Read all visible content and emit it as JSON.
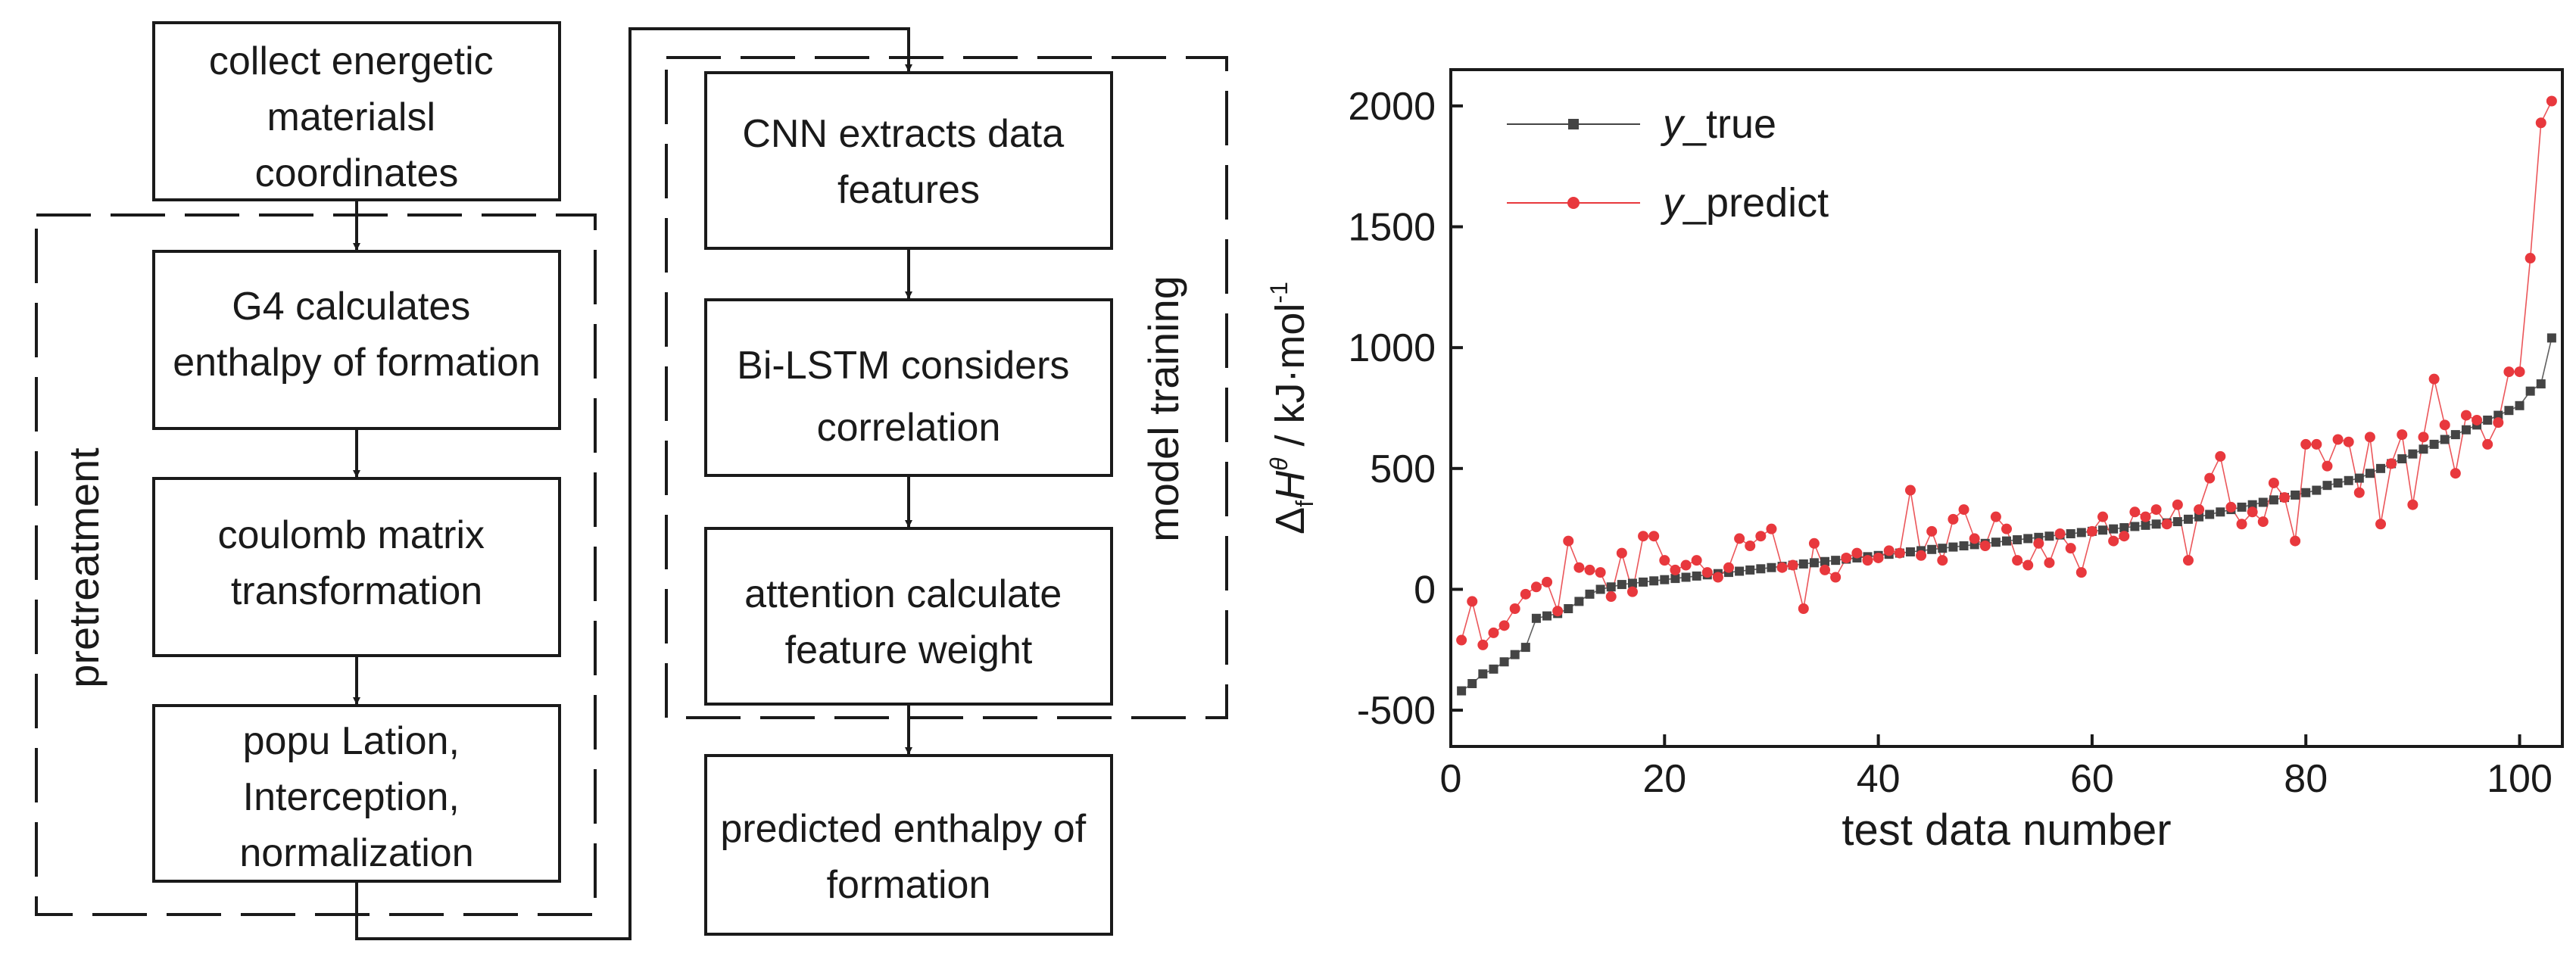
{
  "flowchart": {
    "groups": {
      "pretreatment": "pretreatment",
      "model_training": "model training"
    },
    "nodes": {
      "collect": [
        "collect energetic",
        "materialsl",
        "coordinates"
      ],
      "g4": [
        "G4 calculates",
        "enthalpy of formation"
      ],
      "coulomb": [
        "coulomb matrix",
        "transformation"
      ],
      "popu": [
        "popu Lation,",
        "Interception,",
        "normalization"
      ],
      "cnn": [
        "CNN extracts data",
        "features"
      ],
      "bilstm": [
        "Bi-LSTM considers",
        "correlation"
      ],
      "attention": [
        "attention calculate",
        "feature weight"
      ],
      "predicted": [
        "predicted enthalpy of",
        "formation"
      ]
    }
  },
  "chart_data": {
    "type": "line",
    "xlabel": "test data number",
    "ylabel": "ΔfHθ / kJ·mol-1",
    "ylabel_parts": {
      "delta": "Δ",
      "sub": "f",
      "h": "H",
      "sup": "θ",
      "unit": " / kJ·mol",
      "unit_sup": "-1"
    },
    "xlim": [
      0,
      104
    ],
    "ylim": [
      -650,
      2150
    ],
    "xticks": [
      0,
      20,
      40,
      60,
      80,
      100
    ],
    "yticks": [
      -500,
      0,
      500,
      1000,
      1500,
      2000
    ],
    "legend_position": "top-left",
    "series": [
      {
        "name": "y_true",
        "name_italic": "y",
        "name_rest": "_true",
        "color": "#444444",
        "marker": "square",
        "x": [
          1,
          2,
          3,
          4,
          5,
          6,
          7,
          8,
          9,
          10,
          11,
          12,
          13,
          14,
          15,
          16,
          17,
          18,
          19,
          20,
          21,
          22,
          23,
          24,
          25,
          26,
          27,
          28,
          29,
          30,
          31,
          32,
          33,
          34,
          35,
          36,
          37,
          38,
          39,
          40,
          41,
          42,
          43,
          44,
          45,
          46,
          47,
          48,
          49,
          50,
          51,
          52,
          53,
          54,
          55,
          56,
          57,
          58,
          59,
          60,
          61,
          62,
          63,
          64,
          65,
          66,
          67,
          68,
          69,
          70,
          71,
          72,
          73,
          74,
          75,
          76,
          77,
          78,
          79,
          80,
          81,
          82,
          83,
          84,
          85,
          86,
          87,
          88,
          89,
          90,
          91,
          92,
          93,
          94,
          95,
          96,
          97,
          98,
          99,
          100,
          101,
          102,
          103
        ],
        "values": [
          -420,
          -390,
          -350,
          -330,
          -300,
          -270,
          -240,
          -120,
          -110,
          -100,
          -80,
          -50,
          -20,
          0,
          10,
          20,
          25,
          30,
          35,
          40,
          45,
          50,
          55,
          60,
          65,
          70,
          75,
          80,
          85,
          90,
          95,
          100,
          105,
          110,
          115,
          120,
          125,
          130,
          135,
          140,
          145,
          150,
          155,
          160,
          165,
          170,
          175,
          180,
          185,
          190,
          195,
          200,
          205,
          210,
          215,
          220,
          225,
          230,
          235,
          240,
          245,
          250,
          255,
          260,
          265,
          270,
          275,
          280,
          290,
          300,
          310,
          320,
          330,
          340,
          350,
          360,
          370,
          380,
          390,
          400,
          410,
          430,
          440,
          450,
          460,
          480,
          500,
          520,
          540,
          560,
          580,
          600,
          620,
          640,
          660,
          680,
          700,
          720,
          740,
          760,
          820,
          850,
          1040
        ]
      },
      {
        "name": "y_predict",
        "name_italic": "y",
        "name_rest": "_predict",
        "color": "#e8383d",
        "marker": "circle",
        "x": [
          1,
          2,
          3,
          4,
          5,
          6,
          7,
          8,
          9,
          10,
          11,
          12,
          13,
          14,
          15,
          16,
          17,
          18,
          19,
          20,
          21,
          22,
          23,
          24,
          25,
          26,
          27,
          28,
          29,
          30,
          31,
          32,
          33,
          34,
          35,
          36,
          37,
          38,
          39,
          40,
          41,
          42,
          43,
          44,
          45,
          46,
          47,
          48,
          49,
          50,
          51,
          52,
          53,
          54,
          55,
          56,
          57,
          58,
          59,
          60,
          61,
          62,
          63,
          64,
          65,
          66,
          67,
          68,
          69,
          70,
          71,
          72,
          73,
          74,
          75,
          76,
          77,
          78,
          79,
          80,
          81,
          82,
          83,
          84,
          85,
          86,
          87,
          88,
          89,
          90,
          91,
          92,
          93,
          94,
          95,
          96,
          97,
          98,
          99,
          100,
          101,
          102,
          103
        ],
        "values": [
          -210,
          -50,
          -230,
          -180,
          -150,
          -80,
          -20,
          10,
          30,
          -90,
          200,
          90,
          80,
          70,
          -30,
          150,
          -10,
          220,
          220,
          120,
          80,
          100,
          120,
          70,
          50,
          90,
          210,
          180,
          220,
          250,
          90,
          100,
          -80,
          190,
          80,
          50,
          130,
          150,
          120,
          130,
          160,
          150,
          410,
          140,
          240,
          120,
          290,
          330,
          210,
          180,
          300,
          250,
          120,
          100,
          190,
          110,
          230,
          170,
          70,
          240,
          300,
          200,
          220,
          320,
          300,
          330,
          270,
          350,
          120,
          330,
          460,
          550,
          340,
          270,
          320,
          280,
          440,
          380,
          200,
          600,
          600,
          510,
          620,
          610,
          400,
          630,
          270,
          520,
          640,
          350,
          630,
          870,
          680,
          480,
          720,
          700,
          600,
          690,
          900,
          900,
          1370,
          1930,
          2020
        ]
      }
    ]
  }
}
